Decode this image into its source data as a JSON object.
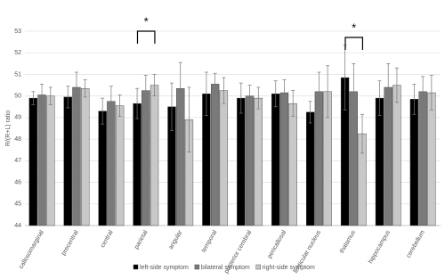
{
  "chart_data": {
    "type": "bar",
    "y_label": "R/(R+L) ratio",
    "categories": [
      "callosomarginal",
      "precentral",
      "central",
      "parietal",
      "angular",
      "temporal",
      "posterior cerebral",
      "pericallosal",
      "lenticular nucleus",
      "thalamus",
      "hippocampus",
      "cerebellum"
    ],
    "series": [
      {
        "name": "left-side symptom",
        "color": "#000000",
        "values": [
          49.9,
          49.95,
          49.3,
          49.65,
          49.5,
          50.1,
          49.9,
          50.1,
          49.25,
          50.85,
          49.9,
          49.85
        ],
        "errors": [
          0.3,
          0.5,
          0.6,
          0.7,
          1.1,
          1.0,
          0.7,
          0.6,
          0.5,
          1.5,
          0.8,
          0.7
        ]
      },
      {
        "name": "bilateral symptom",
        "color": "#7a7a7a",
        "values": [
          50.05,
          50.4,
          49.75,
          50.25,
          50.35,
          50.55,
          50.0,
          50.15,
          50.2,
          50.2,
          50.4,
          50.2
        ],
        "errors": [
          0.5,
          0.7,
          0.7,
          0.7,
          1.2,
          0.5,
          0.5,
          0.6,
          0.9,
          1.3,
          1.1,
          0.7
        ]
      },
      {
        "name": "right-side symptom",
        "color": "#c8c8c8",
        "values": [
          50.0,
          50.35,
          49.55,
          50.5,
          48.9,
          50.25,
          49.9,
          49.65,
          50.2,
          48.25,
          50.5,
          50.15
        ],
        "errors": [
          0.4,
          0.4,
          0.5,
          0.5,
          1.5,
          0.6,
          0.5,
          0.6,
          1.2,
          0.9,
          0.8,
          0.8
        ]
      }
    ],
    "ylim": [
      44,
      53
    ],
    "yticks": [
      44,
      45,
      46,
      47,
      48,
      49,
      50,
      51,
      52,
      53
    ],
    "grid": true,
    "annotations": [
      {
        "text": "*",
        "category": "parietal"
      },
      {
        "text": "*",
        "category": "thalamus"
      }
    ]
  }
}
